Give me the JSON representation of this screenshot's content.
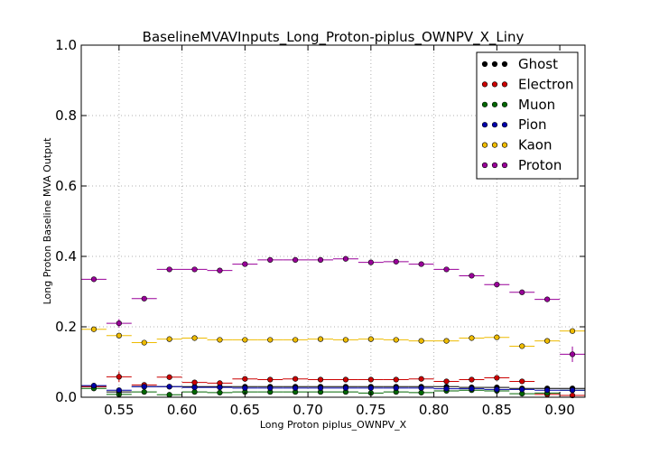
{
  "chart_data": {
    "type": "scatter",
    "title": "BaselineMVAVInputs_Long_Proton-piplus_OWNPV_X_Liny",
    "xlabel": "Long Proton piplus_OWNPV_X",
    "ylabel": "Long Proton Baseline MVA Output",
    "xlim": [
      0.52,
      0.92
    ],
    "ylim": [
      0.0,
      1.0
    ],
    "bin_width": 0.02,
    "grid": true,
    "legend_position": "top-right",
    "x_tick_labels": [
      "0.55",
      "0.60",
      "0.65",
      "0.70",
      "0.75",
      "0.80",
      "0.85",
      "0.90"
    ],
    "x_ticks": [
      0.55,
      0.6,
      0.65,
      0.7,
      0.75,
      0.8,
      0.85,
      0.9
    ],
    "y_tick_labels": [
      "0.0",
      "0.2",
      "0.4",
      "0.6",
      "0.8",
      "1.0"
    ],
    "y_ticks": [
      0.0,
      0.2,
      0.4,
      0.6,
      0.8,
      1.0
    ],
    "x": [
      0.53,
      0.55,
      0.57,
      0.59,
      0.61,
      0.63,
      0.65,
      0.67,
      0.69,
      0.71,
      0.73,
      0.75,
      0.77,
      0.79,
      0.81,
      0.83,
      0.85,
      0.87,
      0.89,
      0.91
    ],
    "series": [
      {
        "name": "Ghost",
        "color": "#000000",
        "values": [
          0.03,
          0.015,
          0.03,
          0.03,
          0.03,
          0.03,
          0.03,
          0.03,
          0.03,
          0.03,
          0.03,
          0.03,
          0.03,
          0.03,
          0.03,
          0.028,
          0.028,
          0.025,
          0.025,
          0.025
        ],
        "errors": [
          0.003,
          0.003,
          0.002,
          0.002,
          0.002,
          0.002,
          0.002,
          0.002,
          0.002,
          0.002,
          0.002,
          0.002,
          0.002,
          0.002,
          0.002,
          0.002,
          0.002,
          0.002,
          0.003,
          0.003
        ]
      },
      {
        "name": "Electron",
        "color": "#cc0000",
        "values": [
          0.03,
          0.058,
          0.035,
          0.057,
          0.042,
          0.04,
          0.052,
          0.05,
          0.052,
          0.05,
          0.05,
          0.05,
          0.05,
          0.052,
          0.045,
          0.05,
          0.055,
          0.045,
          0.008,
          0.005
        ],
        "errors": [
          0.004,
          0.015,
          0.004,
          0.004,
          0.003,
          0.003,
          0.003,
          0.003,
          0.003,
          0.003,
          0.003,
          0.003,
          0.003,
          0.003,
          0.003,
          0.003,
          0.004,
          0.004,
          0.003,
          0.003
        ]
      },
      {
        "name": "Muon",
        "color": "#006600",
        "values": [
          0.025,
          0.008,
          0.015,
          0.007,
          0.015,
          0.013,
          0.015,
          0.015,
          0.015,
          0.015,
          0.015,
          0.012,
          0.015,
          0.013,
          0.018,
          0.02,
          0.018,
          0.01,
          0.012,
          0.02
        ],
        "errors": [
          0.003,
          0.003,
          0.002,
          0.002,
          0.002,
          0.002,
          0.002,
          0.002,
          0.002,
          0.002,
          0.002,
          0.002,
          0.002,
          0.002,
          0.002,
          0.002,
          0.002,
          0.002,
          0.002,
          0.003
        ]
      },
      {
        "name": "Pion",
        "color": "#0000aa",
        "values": [
          0.033,
          0.02,
          0.03,
          0.03,
          0.028,
          0.028,
          0.026,
          0.026,
          0.026,
          0.026,
          0.026,
          0.026,
          0.026,
          0.026,
          0.024,
          0.024,
          0.022,
          0.022,
          0.02,
          0.02
        ],
        "errors": [
          0.003,
          0.003,
          0.002,
          0.002,
          0.002,
          0.002,
          0.002,
          0.002,
          0.002,
          0.002,
          0.002,
          0.002,
          0.002,
          0.002,
          0.002,
          0.002,
          0.002,
          0.002,
          0.002,
          0.003
        ]
      },
      {
        "name": "Kaon",
        "color": "#eebb00",
        "values": [
          0.193,
          0.175,
          0.155,
          0.165,
          0.168,
          0.163,
          0.163,
          0.163,
          0.163,
          0.165,
          0.163,
          0.165,
          0.163,
          0.16,
          0.16,
          0.168,
          0.17,
          0.145,
          0.16,
          0.188
        ],
        "errors": [
          0.005,
          0.005,
          0.004,
          0.004,
          0.003,
          0.003,
          0.003,
          0.003,
          0.003,
          0.003,
          0.003,
          0.003,
          0.003,
          0.003,
          0.003,
          0.003,
          0.004,
          0.004,
          0.005,
          0.007
        ]
      },
      {
        "name": "Proton",
        "color": "#990099",
        "values": [
          0.335,
          0.21,
          0.28,
          0.363,
          0.363,
          0.36,
          0.378,
          0.39,
          0.39,
          0.39,
          0.393,
          0.383,
          0.385,
          0.378,
          0.363,
          0.345,
          0.32,
          0.298,
          0.278,
          0.122
        ],
        "errors": [
          0.005,
          0.012,
          0.006,
          0.004,
          0.004,
          0.004,
          0.004,
          0.004,
          0.004,
          0.004,
          0.004,
          0.004,
          0.004,
          0.004,
          0.004,
          0.004,
          0.005,
          0.006,
          0.008,
          0.022
        ]
      }
    ]
  }
}
